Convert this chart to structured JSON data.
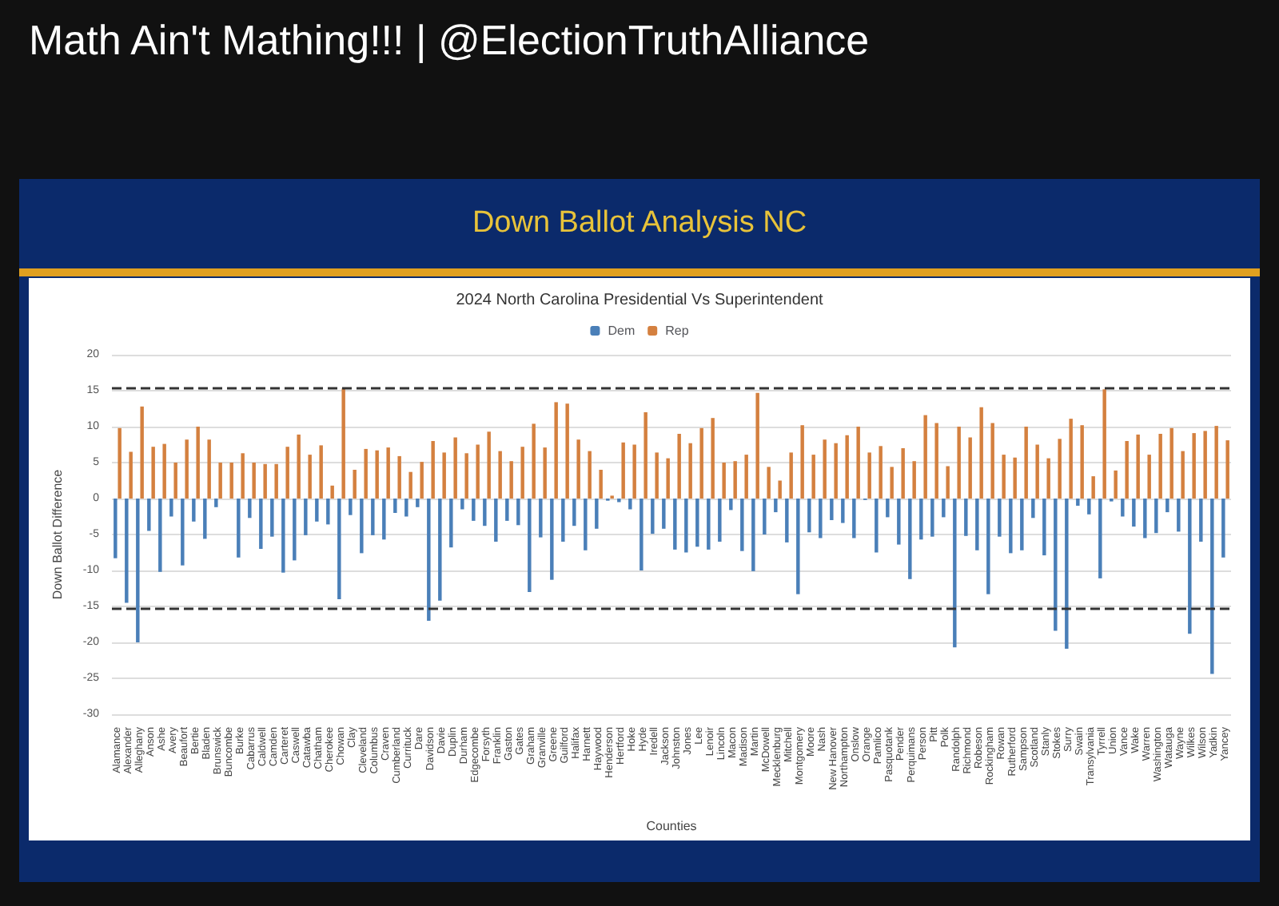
{
  "chart_data": {
    "type": "bar",
    "title": "Down Ballot Analysis NC",
    "subtitle": "2024 North Carolina Presidential Vs Superintendent",
    "annotations": [
      "Math Ain't Mathing!!! | @ElectionTruthAlliance"
    ],
    "xlabel": "Counties",
    "ylabel": "Down Ballot Difference",
    "categories": [
      "Alamance",
      "Alexander",
      "Alleghany",
      "Anson",
      "Ashe",
      "Avery",
      "Beaufort",
      "Bertie",
      "Bladen",
      "Brunswick",
      "Buncombe",
      "Burke",
      "Cabarrus",
      "Caldwell",
      "Camden",
      "Carteret",
      "Caswell",
      "Catawba",
      "Chatham",
      "Cherokee",
      "Chowan",
      "Clay",
      "Cleveland",
      "Columbus",
      "Craven",
      "Cumberland",
      "Currituck",
      "Dare",
      "Davidson",
      "Davie",
      "Duplin",
      "Durham",
      "Edgecombe",
      "Forsyth",
      "Franklin",
      "Gaston",
      "Gates",
      "Graham",
      "Granville",
      "Greene",
      "Guilford",
      "Halifax",
      "Harnett",
      "Haywood",
      "Henderson",
      "Hertford",
      "Hoke",
      "Hyde",
      "Iredell",
      "Jackson",
      "Johnston",
      "Jones",
      "Lee",
      "Lenoir",
      "Lincoln",
      "Macon",
      "Madison",
      "Martin",
      "McDowell",
      "Mecklenburg",
      "Mitchell",
      "Montgomery",
      "Moore",
      "Nash",
      "New Hanover",
      "Northampton",
      "Onslow",
      "Orange",
      "Pamlico",
      "Pasquotank",
      "Pender",
      "Perquimans",
      "Person",
      "Pitt",
      "Polk",
      "Randolph",
      "Richmond",
      "Robeson",
      "Rockingham",
      "Rowan",
      "Rutherford",
      "Sampson",
      "Scotland",
      "Stanly",
      "Stokes",
      "Surry",
      "Swain",
      "Transylvania",
      "Tyrrell",
      "Union",
      "Vance",
      "Wake",
      "Warren",
      "Washington",
      "Watauga",
      "Wayne",
      "Wilkes",
      "Wilson",
      "Yadkin",
      "Yancey"
    ],
    "series": [
      {
        "name": "Dem",
        "color": "#4a7fb8",
        "values": [
          -8.3,
          -14.5,
          -20,
          -4.5,
          -10.2,
          -2.5,
          -9.3,
          -3.2,
          -5.6,
          -1.2,
          0,
          -8.2,
          -2.7,
          -7,
          -5.3,
          -10.3,
          -8.6,
          -5.1,
          -3.2,
          -3.6,
          -14,
          -2.3,
          -7.6,
          -5.1,
          -5.7,
          -2,
          -2.5,
          -1.2,
          -17,
          -14.2,
          -6.8,
          -1.5,
          -3.1,
          -3.8,
          -6,
          -3.1,
          -3.7,
          -13,
          -5.4,
          -11.3,
          -6,
          -3.8,
          -7.2,
          -4.2,
          -0.3,
          -0.5,
          -1.5,
          -10,
          -4.9,
          -4.2,
          -7.1,
          -7.5,
          -6.7,
          -7.1,
          -6,
          -1.6,
          -7.3,
          -10.1,
          -5,
          -1.9,
          -6.1,
          -13.3,
          -4.7,
          -5.5,
          -3,
          -3.4,
          -5.5,
          -0.2,
          -7.5,
          -2.6,
          -6.4,
          -11.2,
          -5.7,
          -5.3,
          -2.6,
          -20.7,
          -5.2,
          -7.2,
          -13.3,
          -5.3,
          -7.6,
          -7.2,
          -2.7,
          -7.9,
          -18.4,
          -20.9,
          -1,
          -2.2,
          -11.1,
          -0.4,
          -2.5,
          -3.9,
          -5.5,
          -4.8,
          -1.9,
          -4.6,
          -18.8,
          -6,
          -24.4,
          -8.2
        ]
      },
      {
        "name": "Rep",
        "color": "#d4803f",
        "values": [
          9.8,
          6.5,
          12.8,
          7.2,
          7.6,
          5,
          8.2,
          10,
          8.2,
          5,
          5,
          6.3,
          5,
          4.8,
          4.8,
          7.2,
          8.9,
          6.1,
          7.4,
          1.8,
          15.3,
          4,
          6.9,
          6.7,
          7.1,
          5.9,
          3.7,
          5.1,
          8,
          6.4,
          8.5,
          6.3,
          7.5,
          9.3,
          6.6,
          5.2,
          7.2,
          10.4,
          7.1,
          13.4,
          13.2,
          8.2,
          6.6,
          4,
          0.4,
          7.8,
          7.5,
          12,
          6.4,
          5.6,
          9,
          7.7,
          9.8,
          11.2,
          5,
          5.2,
          6.1,
          14.7,
          4.4,
          2.5,
          6.4,
          10.2,
          6.1,
          8.2,
          7.7,
          8.8,
          10,
          6.4,
          7.3,
          4.4,
          7,
          5.2,
          11.6,
          10.5,
          4.5,
          10,
          8.5,
          12.7,
          10.5,
          6.1,
          5.7,
          10,
          7.5,
          5.6,
          8.3,
          11.1,
          10.2,
          3.1,
          15.2,
          3.9,
          8,
          8.9,
          6.1,
          9,
          9.8,
          6.6,
          9.1,
          9.4,
          10.1,
          8.1
        ]
      }
    ],
    "ylim": [
      -30,
      20
    ],
    "yticks": [
      -30,
      -25,
      -20,
      -15,
      -10,
      -5,
      0,
      5,
      10,
      15,
      20
    ],
    "grid": "y",
    "legend": "top",
    "ref_lines": [
      {
        "axis": "y",
        "value": 15.3,
        "color": "#333333",
        "line_style": "dashed"
      },
      {
        "axis": "y",
        "value": -15.3,
        "color": "#333333",
        "line_style": "dashed"
      }
    ]
  }
}
